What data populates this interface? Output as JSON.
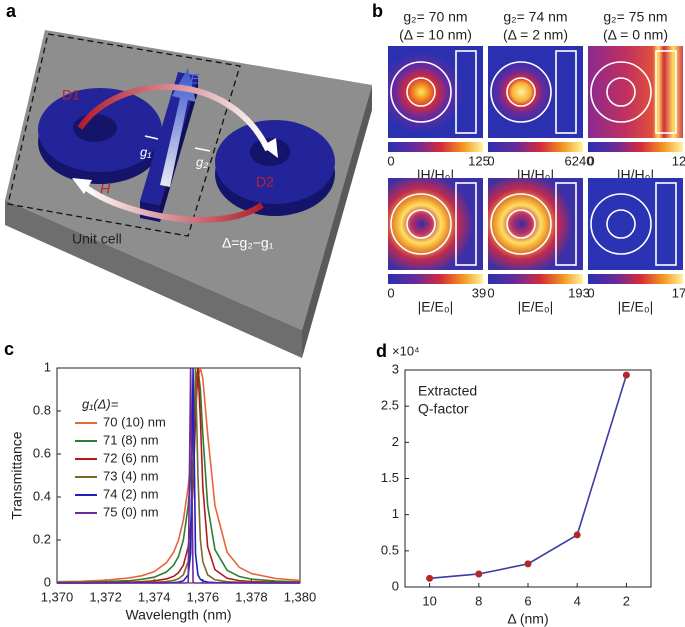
{
  "panel_a": {
    "label": "a",
    "d1": "D1",
    "d2": "D2",
    "e_field": "E",
    "h_field": "H",
    "g1": "g₁",
    "g2": "g₂",
    "unit_cell": "Unit cell",
    "delta": "Δ=g₂−g₁"
  },
  "panel_b": {
    "label": "b",
    "h_label": "|H/H₀|",
    "e_label": "|E/E₀|",
    "columns": [
      {
        "title": "g₂= 70 nm",
        "subtitle": "(Δ = 10 nm)",
        "h_colorbar": {
          "min": 0,
          "max": 125
        },
        "e_colorbar": {
          "min": 0,
          "max": 39
        }
      },
      {
        "title": "g₂= 74 nm",
        "subtitle": "(Δ = 2 nm)",
        "h_colorbar": {
          "min": 0,
          "max": 6240
        },
        "e_colorbar": {
          "min": 0,
          "max": 193
        }
      },
      {
        "title": "g₂= 75 nm",
        "subtitle": "(Δ = 0 nm)",
        "h_colorbar": {
          "min": 0,
          "max": 12
        },
        "e_colorbar": {
          "min": 0,
          "max": 17
        }
      }
    ]
  },
  "chart_data": [
    {
      "panel_label": "c",
      "type": "line",
      "xlabel": "Wavelength (nm)",
      "ylabel": "Transmittance",
      "legend_title": "g₁(Δ)=",
      "legend": "upper left",
      "x": [
        1370,
        1371,
        1372,
        1373,
        1373.5,
        1374,
        1374.5,
        1374.8,
        1375,
        1375.2,
        1375.4,
        1375.5,
        1375.6,
        1375.7,
        1375.8,
        1375.9,
        1376,
        1376.2,
        1376.5,
        1377,
        1377.5,
        1378,
        1379,
        1380
      ],
      "xlim": [
        1370,
        1380
      ],
      "xticks": [
        {
          "value": 1370,
          "label": "1,370"
        },
        {
          "value": 1372,
          "label": "1,372"
        },
        {
          "value": 1374,
          "label": "1,374"
        },
        {
          "value": 1376,
          "label": "1,376"
        },
        {
          "value": 1378,
          "label": "1,378"
        },
        {
          "value": 1380,
          "label": "1,380"
        }
      ],
      "ylim": [
        0,
        1
      ],
      "yticks": [
        0,
        0.2,
        0.4,
        0.6,
        0.8,
        1
      ],
      "series": [
        {
          "name": "70 (10) nm",
          "color": "#e8643c",
          "values": [
            0.006,
            0.008,
            0.013,
            0.024,
            0.034,
            0.053,
            0.094,
            0.143,
            0.2,
            0.292,
            0.448,
            0.559,
            0.692,
            0.835,
            0.953,
            1,
            0.953,
            0.692,
            0.36,
            0.143,
            0.073,
            0.044,
            0.021,
            0.012
          ]
        },
        {
          "name": "71 (8) nm",
          "color": "#2e7d32",
          "values": [
            0.003,
            0.004,
            0.006,
            0.011,
            0.017,
            0.027,
            0.051,
            0.083,
            0.123,
            0.2,
            0.36,
            0.5,
            0.692,
            0.9,
            1,
            0.9,
            0.692,
            0.36,
            0.155,
            0.059,
            0.03,
            0.018,
            0.009,
            0.005
          ]
        },
        {
          "name": "72 (6) nm",
          "color": "#b01c1c",
          "values": [
            0.001,
            0.001,
            0.002,
            0.004,
            0.006,
            0.01,
            0.019,
            0.031,
            0.048,
            0.083,
            0.168,
            0.265,
            0.448,
            0.764,
            1,
            0.764,
            0.448,
            0.168,
            0.062,
            0.022,
            0.011,
            0.007,
            0.003,
            0.002
          ]
        },
        {
          "name": "73 (4) nm",
          "color": "#7a6a2a",
          "values": [
            0,
            0,
            0.001,
            0.001,
            0.002,
            0.003,
            0.007,
            0.012,
            0.02,
            0.038,
            0.1,
            0.2,
            0.5,
            1,
            0.5,
            0.2,
            0.1,
            0.038,
            0.015,
            0.006,
            0.003,
            0.002,
            0.001,
            0.001
          ]
        },
        {
          "name": "74 (2) nm",
          "color": "#2020c0",
          "values": [
            0,
            0,
            0,
            0.001,
            0.001,
            0.001,
            0.001,
            0.002,
            0.004,
            0.01,
            0.038,
            0.138,
            1,
            0.138,
            0.038,
            0.017,
            0.01,
            0.004,
            0.002,
            0.001,
            0.001,
            0,
            0,
            0
          ]
        },
        {
          "name": "75 (0) nm",
          "color": "#6a2a9a",
          "values": [
            0,
            0,
            0,
            0,
            0,
            0,
            0,
            0,
            0,
            0,
            0.001,
            1,
            0.001,
            0,
            0,
            0,
            0,
            0,
            0,
            0,
            0,
            0,
            0,
            0
          ]
        }
      ]
    },
    {
      "panel_label": "d",
      "type": "line",
      "xlabel": "Δ (nm)",
      "y_multiplier": "×10⁴",
      "annotation": [
        "Extracted",
        "Q-factor"
      ],
      "x": [
        10,
        8,
        6,
        4,
        2
      ],
      "xlim": [
        11,
        1
      ],
      "xticks": [
        10,
        8,
        6,
        4,
        2
      ],
      "ylim": [
        0,
        3
      ],
      "yticks": [
        0,
        0.5,
        1,
        1.5,
        2,
        2.5,
        3
      ],
      "series": [
        {
          "color": "#3b3ba8",
          "marker_color": "#b02828",
          "values": [
            0.12,
            0.18,
            0.32,
            0.72,
            2.93
          ]
        }
      ]
    }
  ]
}
